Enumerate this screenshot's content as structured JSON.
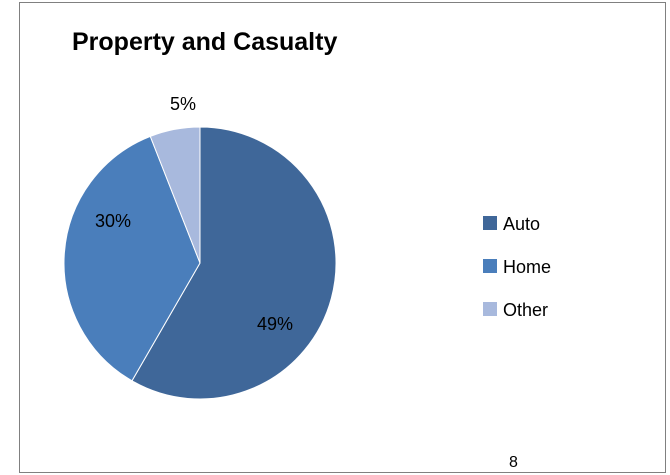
{
  "chart_data": {
    "type": "pie",
    "title": "Property and Casualty",
    "categories": [
      "Auto",
      "Home",
      "Other"
    ],
    "values": [
      49,
      30,
      5
    ],
    "labels": [
      "49%",
      "30%",
      "5%"
    ],
    "colors": [
      "#3f6799",
      "#4a7ebb",
      "#a8b9dd"
    ],
    "legend": {
      "placement": "right",
      "entries": [
        "Auto",
        "Home",
        "Other"
      ]
    }
  },
  "corner_mark": "8"
}
